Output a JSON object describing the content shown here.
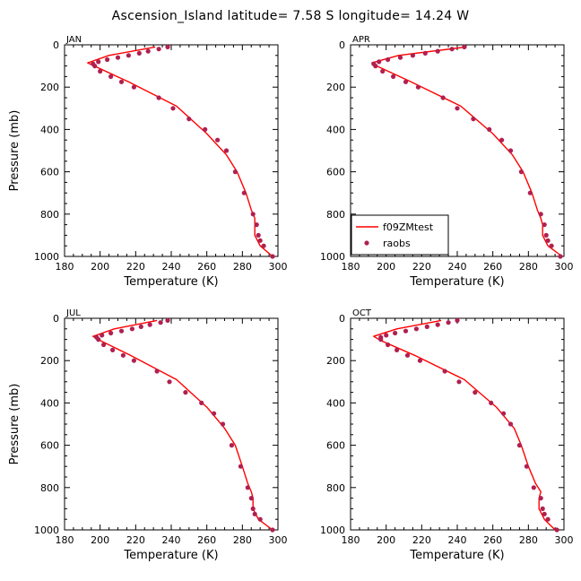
{
  "figure_title": "Ascension_Island   latitude= 7.58 S longitude= 14.24 W",
  "colors": {
    "model": "#ff0000",
    "obs": "#b02050",
    "frame": "#000000"
  },
  "legend": {
    "model_label": "f09ZMtest",
    "obs_label": "raobs"
  },
  "chart_data": [
    {
      "type": "line",
      "panel": "JAN",
      "xlabel": "Temperature (K)",
      "ylabel": "Pressure (mb)",
      "xlim": [
        180,
        300
      ],
      "ylim": [
        1000,
        0
      ],
      "xticks": [
        180,
        200,
        220,
        240,
        260,
        280,
        300
      ],
      "yticks": [
        0,
        200,
        400,
        600,
        800,
        1000
      ],
      "legend_shown": false,
      "series": [
        {
          "name": "f09ZMtest",
          "kind": "line",
          "x": [
            231,
            205,
            193,
            198,
            216,
            243,
            260,
            271,
            277,
            282,
            285,
            287,
            287,
            287,
            290,
            297
          ],
          "y": [
            10,
            50,
            85,
            105,
            175,
            290,
            420,
            520,
            600,
            700,
            780,
            820,
            850,
            900,
            950,
            1000
          ]
        },
        {
          "name": "raobs",
          "kind": "scatter",
          "x": [
            238,
            233,
            227,
            222,
            216,
            210,
            204,
            199,
            196,
            197,
            200,
            206,
            212,
            219,
            233,
            241,
            250,
            259,
            266,
            271,
            276,
            281,
            286,
            288,
            289,
            290,
            292,
            297
          ],
          "y": [
            10,
            20,
            30,
            40,
            50,
            60,
            70,
            80,
            90,
            100,
            125,
            150,
            175,
            200,
            250,
            300,
            350,
            400,
            450,
            500,
            600,
            700,
            800,
            850,
            900,
            925,
            950,
            1000
          ]
        }
      ]
    },
    {
      "type": "line",
      "panel": "APR",
      "xlabel": "Temperature (K)",
      "ylabel": "",
      "xlim": [
        180,
        300
      ],
      "ylim": [
        1000,
        0
      ],
      "xticks": [
        180,
        200,
        220,
        240,
        260,
        280,
        300
      ],
      "yticks": [
        0,
        200,
        400,
        600,
        800,
        1000
      ],
      "legend_shown": true,
      "series": [
        {
          "name": "f09ZMtest",
          "kind": "line",
          "x": [
            245,
            207,
            192,
            196,
            214,
            242,
            260,
            271,
            277,
            282,
            285,
            287,
            288,
            288,
            291,
            299
          ],
          "y": [
            10,
            50,
            85,
            105,
            175,
            290,
            420,
            520,
            600,
            700,
            780,
            820,
            850,
            900,
            950,
            1000
          ]
        },
        {
          "name": "raobs",
          "kind": "scatter",
          "x": [
            244,
            237,
            229,
            222,
            215,
            208,
            201,
            196,
            193,
            194,
            198,
            204,
            211,
            218,
            232,
            240,
            249,
            258,
            265,
            270,
            276,
            281,
            287,
            289,
            290,
            291,
            293,
            298
          ],
          "y": [
            10,
            20,
            30,
            40,
            50,
            60,
            70,
            80,
            90,
            100,
            125,
            150,
            175,
            200,
            250,
            300,
            350,
            400,
            450,
            500,
            600,
            700,
            800,
            850,
            900,
            925,
            950,
            1000
          ]
        }
      ]
    },
    {
      "type": "line",
      "panel": "JUL",
      "xlabel": "Temperature (K)",
      "ylabel": "Pressure (mb)",
      "xlim": [
        180,
        300
      ],
      "ylim": [
        1000,
        0
      ],
      "xticks": [
        180,
        200,
        220,
        240,
        260,
        280,
        300
      ],
      "yticks": [
        0,
        200,
        400,
        600,
        800,
        1000
      ],
      "legend_shown": false,
      "series": [
        {
          "name": "f09ZMtest",
          "kind": "line",
          "x": [
            232,
            208,
            196,
            200,
            217,
            243,
            260,
            270,
            276,
            280,
            283,
            285,
            286,
            286,
            289,
            297
          ],
          "y": [
            10,
            50,
            85,
            105,
            175,
            290,
            420,
            520,
            600,
            700,
            780,
            820,
            850,
            900,
            950,
            1000
          ]
        },
        {
          "name": "raobs",
          "kind": "scatter",
          "x": [
            238,
            234,
            228,
            223,
            218,
            212,
            206,
            201,
            198,
            199,
            202,
            207,
            213,
            219,
            232,
            239,
            248,
            257,
            264,
            269,
            274,
            279,
            283,
            285,
            286,
            287,
            290,
            297
          ],
          "y": [
            10,
            20,
            30,
            40,
            50,
            60,
            70,
            80,
            90,
            100,
            125,
            150,
            175,
            200,
            250,
            300,
            350,
            400,
            450,
            500,
            600,
            700,
            800,
            850,
            900,
            925,
            950,
            1000
          ]
        }
      ]
    },
    {
      "type": "line",
      "panel": "OCT",
      "xlabel": "Temperature (K)",
      "ylabel": "",
      "xlim": [
        180,
        300
      ],
      "ylim": [
        1000,
        0
      ],
      "xticks": [
        180,
        200,
        220,
        240,
        260,
        280,
        300
      ],
      "yticks": [
        0,
        200,
        400,
        600,
        800,
        1000
      ],
      "legend_shown": false,
      "series": [
        {
          "name": "f09ZMtest",
          "kind": "line",
          "x": [
            231,
            206,
            193,
            197,
            216,
            244,
            262,
            272,
            276,
            280,
            284,
            287,
            286,
            286,
            289,
            295
          ],
          "y": [
            10,
            50,
            85,
            105,
            175,
            290,
            420,
            520,
            600,
            700,
            780,
            820,
            850,
            900,
            950,
            1000
          ]
        },
        {
          "name": "raobs",
          "kind": "scatter",
          "x": [
            240,
            235,
            229,
            223,
            217,
            211,
            205,
            200,
            197,
            197,
            201,
            206,
            212,
            219,
            233,
            241,
            250,
            259,
            266,
            270,
            275,
            279,
            283,
            287,
            288,
            289,
            291,
            296
          ],
          "y": [
            10,
            20,
            30,
            40,
            50,
            60,
            70,
            80,
            90,
            100,
            125,
            150,
            175,
            200,
            250,
            300,
            350,
            400,
            450,
            500,
            600,
            700,
            800,
            850,
            900,
            925,
            950,
            1000
          ]
        }
      ]
    }
  ]
}
